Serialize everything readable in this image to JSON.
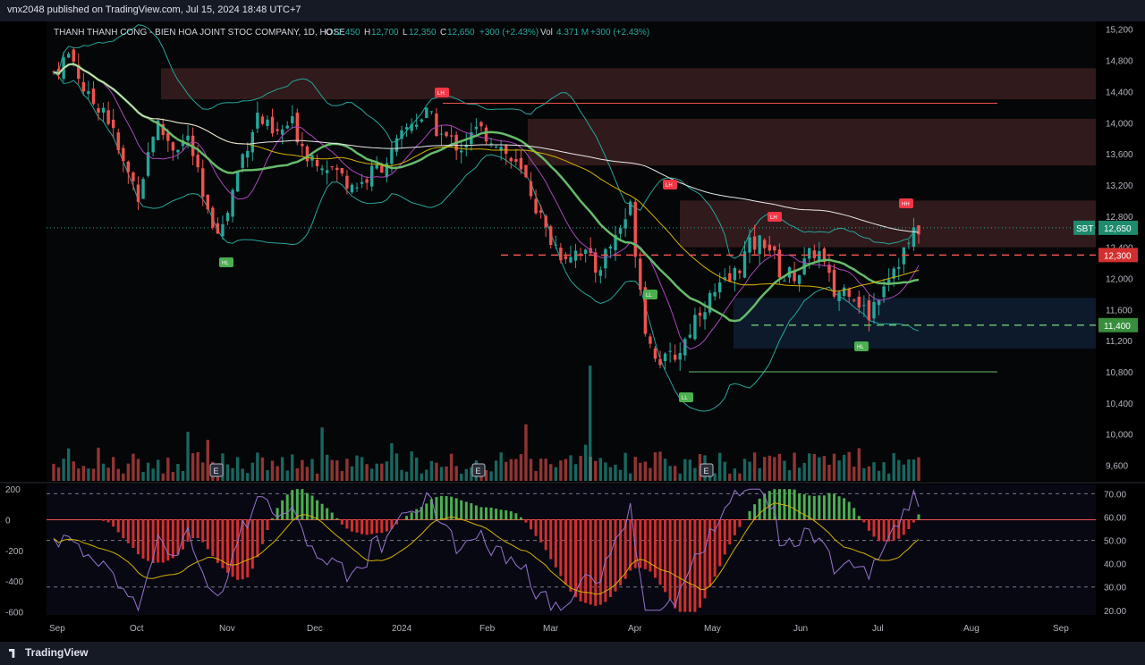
{
  "publish_line": "vnx2048 published on TradingView.com, Jul 15, 2024 18:48 UTC+7",
  "legend": {
    "name": "THANH THANH CONG - BIEN HOA JOINT STOC COMPANY, 1D, HOSE",
    "o_label": "O",
    "o_value": "12,450",
    "h_label": "H",
    "h_value": "12,700",
    "l_label": "L",
    "l_value": "12,350",
    "c_label": "C",
    "c_value": "12,650",
    "change": "+300 (+2.43%)",
    "vol_label": "Vol",
    "vol_value": "4.371 M",
    "vol_change": "+300 (+2.43%)"
  },
  "brand": "TradingView",
  "colors": {
    "up": "#26a69a",
    "down": "#ef5350",
    "ema_green": "#66bb6a",
    "ma_yellow": "#d4b106",
    "ma_white": "#e8e8e8",
    "bb": "#26a69a",
    "zone_red": "#3a1e1e",
    "zone_blue": "#0f1f33",
    "rsi": "#9575cd",
    "macd_signal": "#d4b106"
  },
  "chart_data": [
    {
      "type": "candlestick",
      "title": "THANH THANH CONG - BIEN HOA JOINT STOC COMPANY, 1D, HOSE",
      "symbol": "SBT",
      "x_labels": [
        "Sep",
        "Oct",
        "Nov",
        "Dec",
        "2024",
        "Feb",
        "Mar",
        "Apr",
        "May",
        "Jun",
        "Jul",
        "Aug",
        "Sep"
      ],
      "y_ticks": [
        "15,200",
        "14,800",
        "14,400",
        "14,000",
        "13,600",
        "13,200",
        "12,800",
        "12,400",
        "12,000",
        "11,600",
        "11,200",
        "10,800",
        "10,400",
        "10,000",
        "9,600"
      ],
      "ylim": [
        9400,
        15300
      ],
      "last_price": 12650,
      "price_labels": [
        {
          "text": "SBT",
          "value": "12,650"
        },
        {
          "text": "12,300"
        },
        {
          "text": "11,400"
        }
      ],
      "series": [
        {
          "name": "Close (approx)",
          "values": [
            14650,
            14900,
            14300,
            14200,
            13500,
            13100,
            14000,
            13700,
            13800,
            12800,
            12650,
            13500,
            14100,
            13800,
            14000,
            13600,
            13500,
            13300,
            13200,
            13400,
            13600,
            14000,
            14100,
            13800,
            13700,
            13900,
            13800,
            13500,
            13200,
            12600,
            12300,
            12400,
            12100,
            12500,
            12900,
            11200,
            10900,
            11100,
            11600,
            11800,
            12000,
            12400,
            12500,
            12000,
            12100,
            12400,
            11800,
            11900,
            11500,
            12000,
            12300,
            12650
          ]
        }
      ],
      "horizontal_levels": [
        12300,
        11400,
        14250,
        10800
      ],
      "zones": [
        {
          "from": 14300,
          "to": 14700
        },
        {
          "from": 13450,
          "to": 14050
        },
        {
          "from": 12400,
          "to": 13000
        },
        {
          "from": 11100,
          "to": 11750
        }
      ],
      "markers": [
        "LH",
        "LH",
        "LH",
        "HH",
        "HL",
        "LL",
        "LL",
        "HL"
      ],
      "earnings_markers": [
        "E",
        "E",
        "E"
      ]
    },
    {
      "type": "bar",
      "title": "",
      "y_ticks": [
        "200",
        "0",
        "-200",
        "-400",
        "-600"
      ],
      "ylim": [
        -620,
        230
      ],
      "right_ticks": [
        "70.00",
        "60.00",
        "50.00",
        "40.00",
        "30.00",
        "20.00"
      ],
      "right_lim": [
        18,
        74
      ]
    }
  ]
}
